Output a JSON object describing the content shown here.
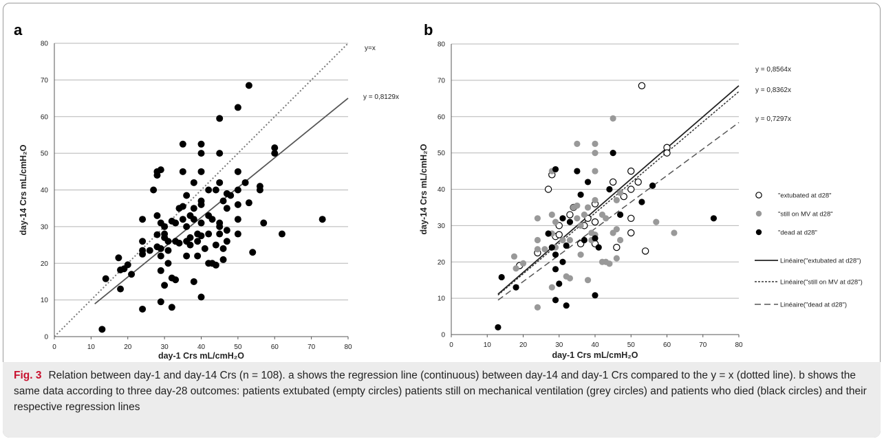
{
  "caption": {
    "label": "Fig. 3",
    "text": "Relation between day-1 and day-14 Crs (n = 108). a shows the regression line (continuous) between day-14 and day-1 Crs compared to the y = x (dotted line). b shows the same data according to three day-28 outcomes: patients extubated (empty circles) patients still on mechanical ventilation (grey circles) and patients who died (black circles) and their respective regression lines"
  },
  "chart_data": [
    {
      "panel": "a",
      "type": "scatter",
      "xlabel": "day-1 Crs mL/cmH₂O",
      "ylabel": "day-14 Crs mL/cmH₂O",
      "xlim": [
        0,
        80
      ],
      "ylim": [
        0,
        80
      ],
      "xticks": [
        0,
        10,
        20,
        30,
        40,
        50,
        60,
        70,
        80
      ],
      "yticks": [
        0,
        10,
        20,
        30,
        40,
        50,
        60,
        70,
        80
      ],
      "grid": "horizontal",
      "identity_line": {
        "label": "y=x",
        "slope": 1,
        "x": [
          0,
          80
        ],
        "style": "dotted"
      },
      "regression": {
        "label": "y = 0,8129x",
        "slope": 0.8129,
        "x": [
          11,
          80
        ],
        "style": "solid"
      },
      "points": [
        [
          13,
          2
        ],
        [
          14,
          15.8
        ],
        [
          18,
          18.2
        ],
        [
          17.5,
          21.5
        ],
        [
          18,
          13
        ],
        [
          19,
          18.5
        ],
        [
          20,
          19.6
        ],
        [
          21,
          17
        ],
        [
          24,
          32
        ],
        [
          24,
          26
        ],
        [
          24,
          23.5
        ],
        [
          24,
          22.5
        ],
        [
          24,
          7.5
        ],
        [
          26,
          23.5
        ],
        [
          27,
          40
        ],
        [
          28,
          44
        ],
        [
          28,
          45
        ],
        [
          28,
          27.8
        ],
        [
          28,
          24.5
        ],
        [
          29,
          45.5
        ],
        [
          28,
          33
        ],
        [
          29,
          31
        ],
        [
          29,
          24
        ],
        [
          29,
          22
        ],
        [
          29,
          18
        ],
        [
          29,
          9.5
        ],
        [
          30,
          30
        ],
        [
          30,
          28
        ],
        [
          30,
          27
        ],
        [
          30,
          14
        ],
        [
          31,
          26
        ],
        [
          31,
          23.5
        ],
        [
          31,
          20
        ],
        [
          32,
          31.5
        ],
        [
          32,
          16
        ],
        [
          32,
          8
        ],
        [
          33,
          26
        ],
        [
          33,
          15.5
        ],
        [
          33,
          31
        ],
        [
          34,
          35
        ],
        [
          34,
          25.5
        ],
        [
          35,
          52.5
        ],
        [
          35,
          45
        ],
        [
          35,
          35.5
        ],
        [
          35,
          32
        ],
        [
          36,
          38.5
        ],
        [
          36,
          30
        ],
        [
          36,
          26
        ],
        [
          36,
          22
        ],
        [
          37,
          33
        ],
        [
          37,
          27
        ],
        [
          37,
          25
        ],
        [
          38,
          42
        ],
        [
          38,
          35
        ],
        [
          38,
          32
        ],
        [
          38,
          15
        ],
        [
          39,
          28
        ],
        [
          39,
          26
        ],
        [
          39,
          22
        ],
        [
          40,
          52.5
        ],
        [
          40,
          50
        ],
        [
          40,
          45
        ],
        [
          40,
          37
        ],
        [
          40,
          36
        ],
        [
          40,
          31
        ],
        [
          40,
          27.5
        ],
        [
          40,
          10.8
        ],
        [
          41,
          24
        ],
        [
          42,
          40
        ],
        [
          42,
          33
        ],
        [
          42,
          28
        ],
        [
          42,
          20
        ],
        [
          43,
          32
        ],
        [
          43,
          20
        ],
        [
          44,
          19.5
        ],
        [
          44,
          40
        ],
        [
          44,
          25
        ],
        [
          45,
          59.5
        ],
        [
          45,
          50
        ],
        [
          45,
          42
        ],
        [
          45,
          31
        ],
        [
          45,
          30
        ],
        [
          45,
          28
        ],
        [
          46,
          37
        ],
        [
          46,
          24
        ],
        [
          46,
          21
        ],
        [
          47,
          39
        ],
        [
          47,
          35
        ],
        [
          47,
          29
        ],
        [
          47,
          26
        ],
        [
          48,
          38.5
        ],
        [
          50,
          62.5
        ],
        [
          50,
          45
        ],
        [
          50,
          40
        ],
        [
          50,
          36
        ],
        [
          50,
          32
        ],
        [
          50,
          28
        ],
        [
          52,
          42
        ],
        [
          53,
          68.5
        ],
        [
          53,
          36.5
        ],
        [
          54,
          23
        ],
        [
          56,
          41
        ],
        [
          56,
          40
        ],
        [
          57,
          31
        ],
        [
          60,
          51.5
        ],
        [
          60,
          50
        ],
        [
          62,
          28
        ],
        [
          73,
          32
        ]
      ]
    },
    {
      "panel": "b",
      "type": "scatter",
      "xlabel": "day-1 Crs mL/cmH₂O",
      "ylabel": "day-14 Crs mL/cmH₂O",
      "xlim": [
        0,
        80
      ],
      "ylim": [
        0,
        80
      ],
      "xticks": [
        0,
        10,
        20,
        30,
        40,
        50,
        60,
        70,
        80
      ],
      "yticks": [
        0,
        10,
        20,
        30,
        40,
        50,
        60,
        70,
        80
      ],
      "grid": "horizontal",
      "legend_position": "right",
      "series": [
        {
          "name": "\"extubated at d28\"",
          "marker": "empty-circle",
          "color": "#000000",
          "points": [
            [
              19,
              19
            ],
            [
              24,
              22.5
            ],
            [
              27,
              40
            ],
            [
              28,
              44
            ],
            [
              29,
              27
            ],
            [
              30,
              27.5
            ],
            [
              30,
              30
            ],
            [
              33,
              33
            ],
            [
              34,
              35
            ],
            [
              36,
              25
            ],
            [
              37,
              30
            ],
            [
              38,
              32
            ],
            [
              40,
              36
            ],
            [
              40,
              31
            ],
            [
              40,
              25
            ],
            [
              45,
              42
            ],
            [
              46,
              24
            ],
            [
              48,
              38
            ],
            [
              50,
              45
            ],
            [
              50,
              40
            ],
            [
              50,
              32
            ],
            [
              50,
              28
            ],
            [
              52,
              42
            ],
            [
              53,
              68.5
            ],
            [
              54,
              23
            ],
            [
              60,
              51.5
            ],
            [
              60,
              50
            ]
          ]
        },
        {
          "name": "\"still on MV at d28\"",
          "marker": "filled-circle",
          "color": "#999999",
          "points": [
            [
              17.5,
              21.5
            ],
            [
              18,
              18.2
            ],
            [
              20,
              19.6
            ],
            [
              24,
              32
            ],
            [
              24,
              26
            ],
            [
              24,
              23.5
            ],
            [
              24,
              7.5
            ],
            [
              26,
              23.5
            ],
            [
              28,
              45
            ],
            [
              28,
              33
            ],
            [
              28,
              27.8
            ],
            [
              28,
              13
            ],
            [
              29,
              31
            ],
            [
              29,
              24
            ],
            [
              31,
              26
            ],
            [
              32,
              16
            ],
            [
              33,
              26
            ],
            [
              33,
              15.5
            ],
            [
              34,
              35
            ],
            [
              35,
              52.5
            ],
            [
              35,
              35.5
            ],
            [
              35,
              32
            ],
            [
              36,
              30
            ],
            [
              36,
              22
            ],
            [
              37,
              33
            ],
            [
              38,
              35
            ],
            [
              38,
              15
            ],
            [
              39,
              28
            ],
            [
              39,
              26
            ],
            [
              40,
              52.5
            ],
            [
              40,
              50
            ],
            [
              40,
              45
            ],
            [
              40,
              37
            ],
            [
              40,
              27.5
            ],
            [
              42,
              33
            ],
            [
              42,
              20
            ],
            [
              43,
              32
            ],
            [
              43,
              20
            ],
            [
              44,
              19.5
            ],
            [
              45,
              59.5
            ],
            [
              45,
              28
            ],
            [
              46,
              37
            ],
            [
              46,
              29
            ],
            [
              46,
              21
            ],
            [
              47,
              39
            ],
            [
              47,
              26
            ],
            [
              56,
              41
            ],
            [
              57,
              31
            ],
            [
              62,
              28
            ]
          ]
        },
        {
          "name": "\"dead at d28\"",
          "marker": "filled-circle",
          "color": "#000000",
          "points": [
            [
              13,
              2
            ],
            [
              14,
              15.8
            ],
            [
              18,
              13
            ],
            [
              27,
              27.8
            ],
            [
              28,
              24
            ],
            [
              29,
              45.5
            ],
            [
              29,
              22
            ],
            [
              29,
              18
            ],
            [
              29,
              9.5
            ],
            [
              30,
              14
            ],
            [
              31,
              20
            ],
            [
              31,
              32
            ],
            [
              32,
              24.5
            ],
            [
              32,
              8
            ],
            [
              33,
              31
            ],
            [
              35,
              45
            ],
            [
              36,
              38.5
            ],
            [
              37,
              26
            ],
            [
              38,
              42
            ],
            [
              40,
              26.5
            ],
            [
              40,
              10.8
            ],
            [
              41,
              24
            ],
            [
              44,
              40
            ],
            [
              45,
              50
            ],
            [
              47,
              33
            ],
            [
              53,
              36.5
            ],
            [
              56,
              41
            ],
            [
              73,
              32
            ]
          ]
        }
      ],
      "regressions": [
        {
          "name": "Linéaire(\"extubated at d28\")",
          "label": "y = 0,8564x",
          "slope": 0.8564,
          "x": [
            13,
            80
          ],
          "style": "solid"
        },
        {
          "name": "Linéaire(\"still on MV at d28\")",
          "label": "y = 0,8362x",
          "slope": 0.8362,
          "x": [
            13,
            80
          ],
          "style": "short-dash"
        },
        {
          "name": "Linéaire(\"dead at d28\")",
          "label": "y = 0,7297x",
          "slope": 0.7297,
          "x": [
            13,
            80
          ],
          "style": "long-dash"
        }
      ]
    }
  ]
}
